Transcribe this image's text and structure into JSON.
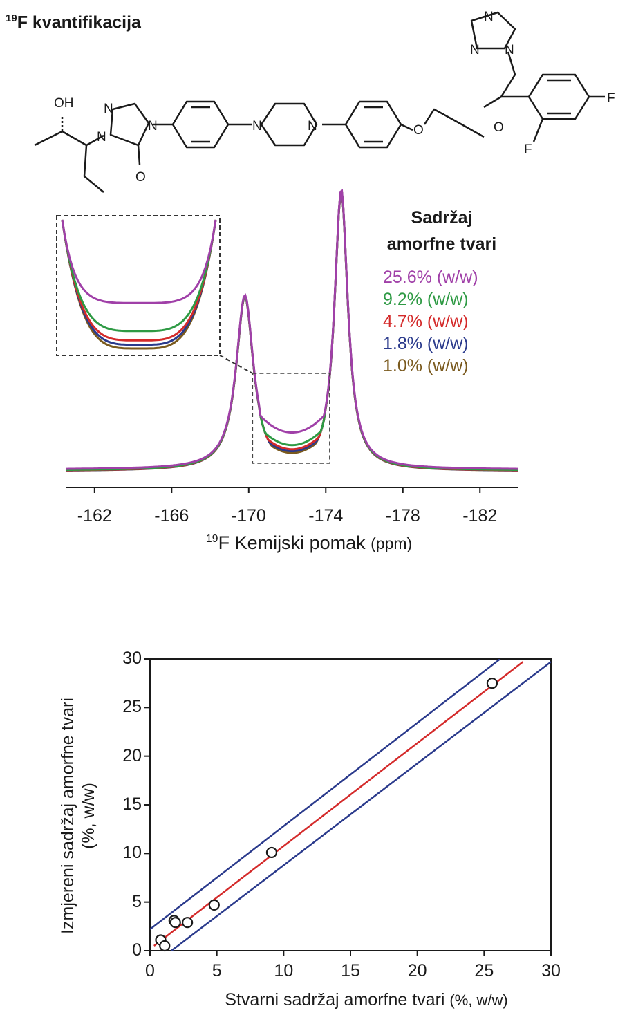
{
  "title": {
    "superscript": "19",
    "text": "F kvantifikacija"
  },
  "molecule_atoms": [
    "OH",
    "N",
    "N",
    "N",
    "O",
    "N",
    "N",
    "O",
    "O",
    "N",
    "N",
    "N",
    "F",
    "F"
  ],
  "chart_data": [
    {
      "type": "line",
      "title": "",
      "xlabel": {
        "superscript": "19",
        "text": "F Kemijski pomak",
        "unit": "(ppm)"
      },
      "xlim": [
        -160.5,
        -184
      ],
      "x_reversed": true,
      "xticks": [
        -162,
        -166,
        -170,
        -174,
        -178,
        -182
      ],
      "xtick_labels": [
        "-162",
        "-166",
        "-170",
        "-174",
        "-178",
        "-182"
      ],
      "peaks": [
        {
          "position": -169.8,
          "relative_height": 0.62
        },
        {
          "position": -174.8,
          "relative_height": 1.0
        }
      ],
      "legend": {
        "title_line1": "Sadržaj",
        "title_line2": "amorfne tvari",
        "placement": "top-right"
      },
      "series": [
        {
          "name": "25.6% (w/w)",
          "color": "#a040a8",
          "valley_level": 0.145
        },
        {
          "name": "9.2% (w/w)",
          "color": "#2e9a44",
          "valley_level": 0.1
        },
        {
          "name": "4.7% (w/w)",
          "color": "#d42a2a",
          "valley_level": 0.085
        },
        {
          "name": "1.8% (w/w)",
          "color": "#2a3a8c",
          "valley_level": 0.078
        },
        {
          "name": "1.0% (w/w)",
          "color": "#7a5a1e",
          "valley_level": 0.072
        }
      ],
      "inset": {
        "x_range": [
          -170.2,
          -174.2
        ],
        "zoom": "valley region"
      }
    },
    {
      "type": "scatter",
      "title": "",
      "xlabel": {
        "text": "Stvarni sadržaj amorfne tvari",
        "unit": "(%, w/w)"
      },
      "ylabel": {
        "line1": "Izmjereni sadržaj amorfne tvari",
        "line2": "(%, w/w)"
      },
      "xlim": [
        0,
        30
      ],
      "ylim": [
        0,
        30
      ],
      "xticks": [
        0,
        5,
        10,
        15,
        20,
        25,
        30
      ],
      "yticks": [
        0,
        5,
        10,
        15,
        20,
        25,
        30
      ],
      "points": [
        {
          "x": 0.8,
          "y": 1.1
        },
        {
          "x": 1.1,
          "y": 0.5
        },
        {
          "x": 1.8,
          "y": 3.1
        },
        {
          "x": 1.9,
          "y": 2.9
        },
        {
          "x": 2.8,
          "y": 2.9
        },
        {
          "x": 4.8,
          "y": 4.7
        },
        {
          "x": 9.1,
          "y": 10.1
        },
        {
          "x": 25.6,
          "y": 27.5
        }
      ],
      "fit_line": {
        "color": "#d42a2a",
        "x": [
          0.3,
          27.9
        ],
        "y": [
          0.5,
          29.7
        ]
      },
      "confidence_lines": {
        "color": "#2a3a8c",
        "upper": {
          "x": [
            0,
            26.2
          ],
          "y": [
            2.2,
            30
          ]
        },
        "lower": {
          "x": [
            1.6,
            30
          ],
          "y": [
            0,
            29.7
          ]
        }
      }
    }
  ]
}
